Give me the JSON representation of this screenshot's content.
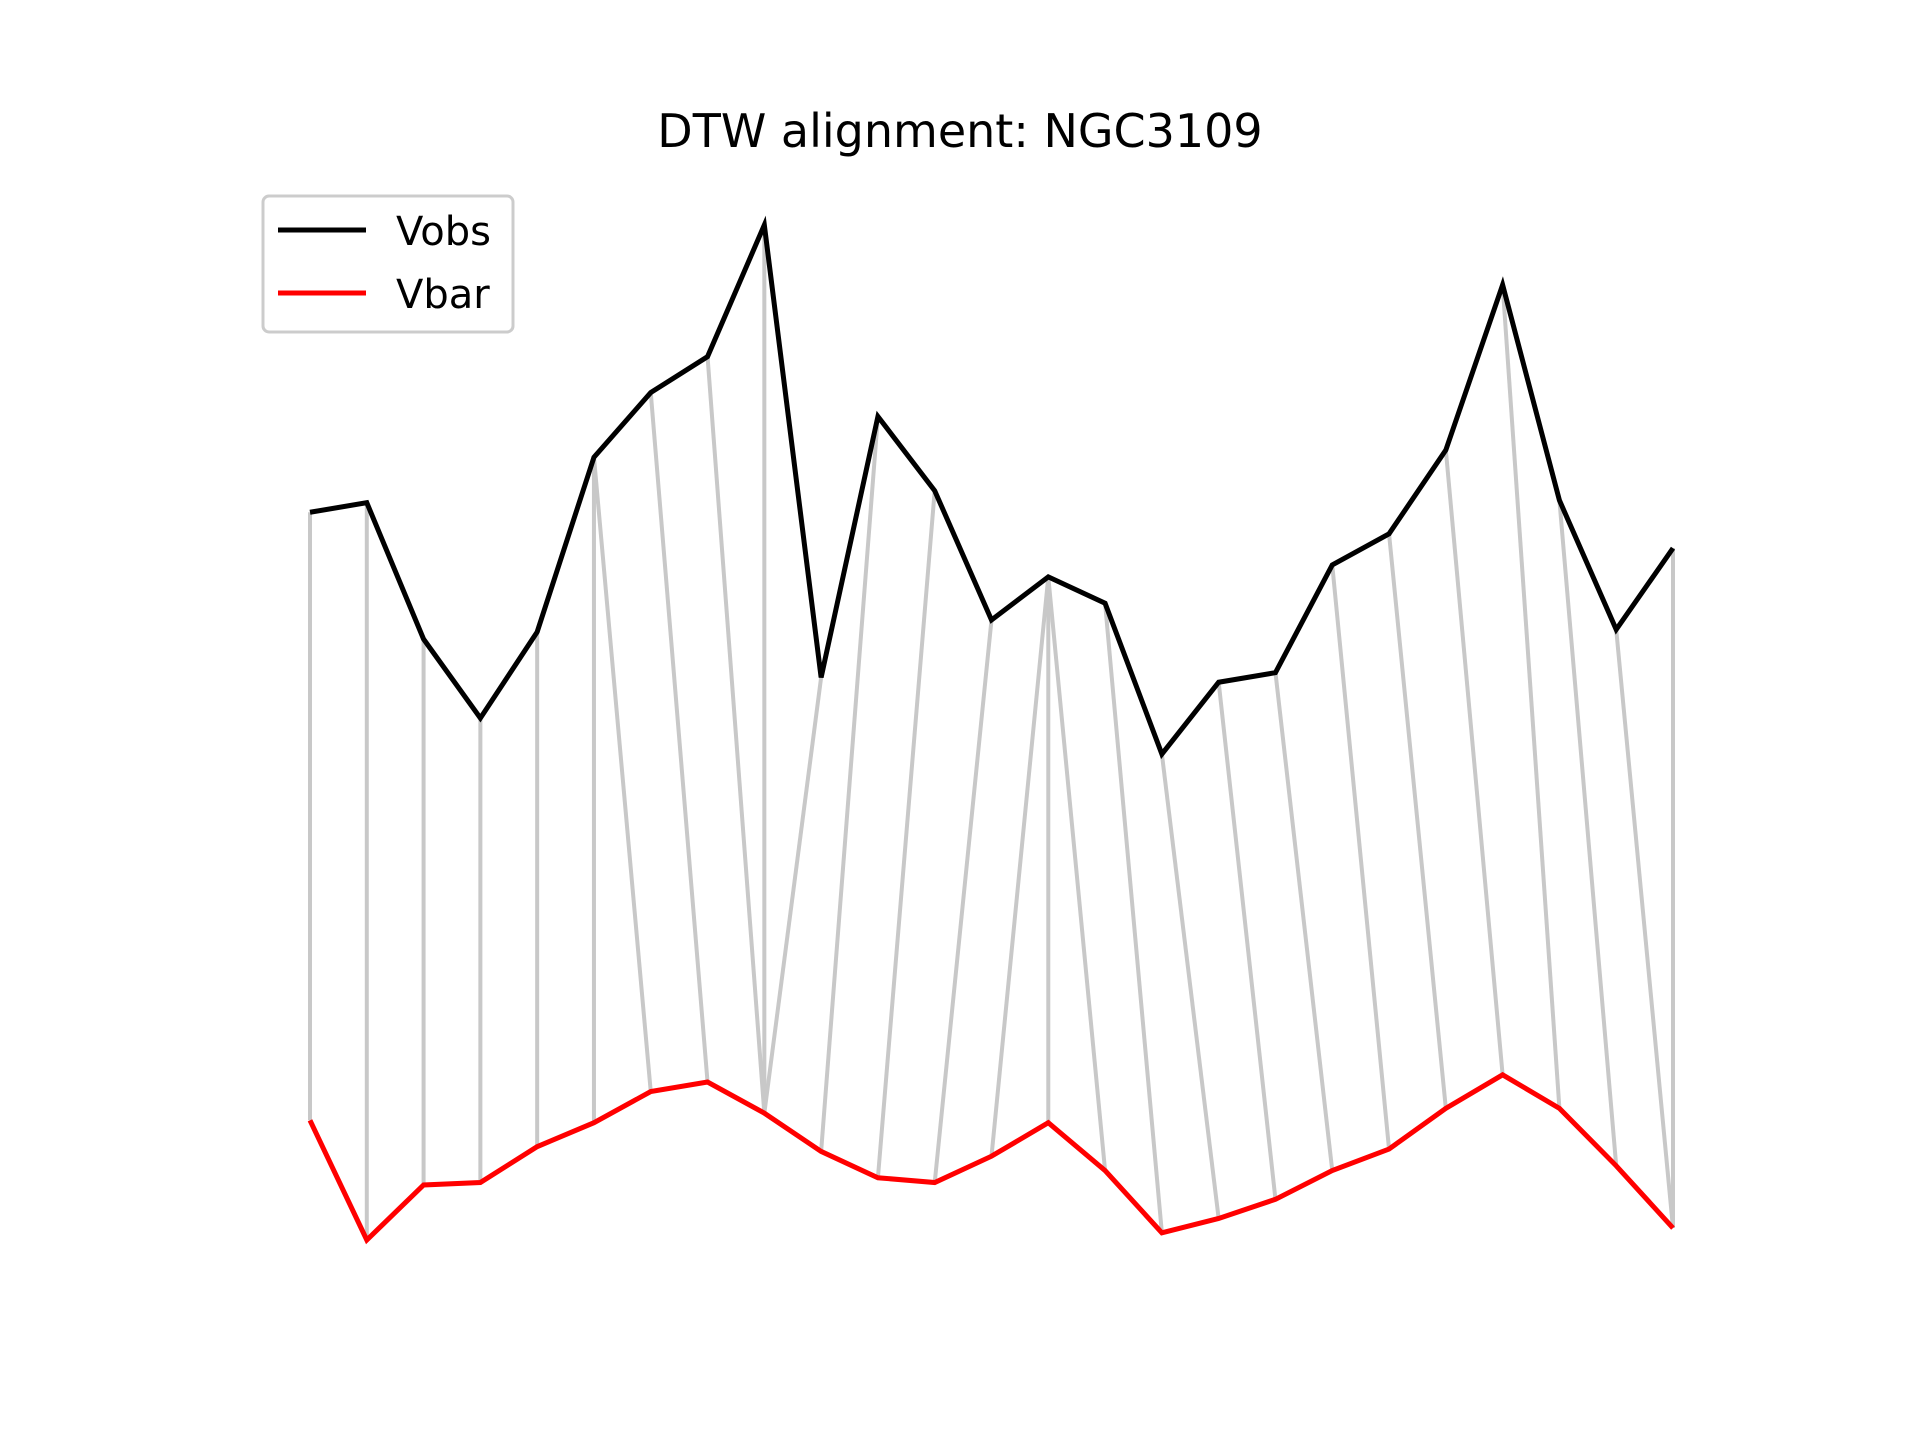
{
  "chart_data": {
    "type": "line",
    "title": "DTW alignment: NGC3109",
    "xlabel": "",
    "ylabel": "",
    "axes_visible": false,
    "grid": false,
    "legend_position": "upper-left",
    "x": [
      0,
      1,
      2,
      3,
      4,
      5,
      6,
      7,
      8,
      9,
      10,
      11,
      12,
      13,
      14,
      15,
      16,
      17,
      18,
      19,
      20,
      21,
      22,
      23,
      24
    ],
    "series": [
      {
        "name": "Vobs",
        "color": "#000000",
        "values": [
          1.8,
          1.84,
          1.27,
          0.94,
          1.3,
          2.03,
          2.3,
          2.45,
          3.0,
          1.11,
          2.2,
          1.89,
          1.35,
          1.53,
          1.42,
          0.79,
          1.09,
          1.13,
          1.58,
          1.71,
          2.06,
          2.75,
          1.85,
          1.31,
          1.65
        ]
      },
      {
        "name": "Vbar",
        "color": "#ff0000",
        "values": [
          -0.74,
          -1.24,
          -1.01,
          -1.0,
          -0.85,
          -0.75,
          -0.62,
          -0.58,
          -0.71,
          -0.87,
          -0.98,
          -1.0,
          -0.89,
          -0.75,
          -0.95,
          -1.21,
          -1.15,
          -1.07,
          -0.95,
          -0.86,
          -0.69,
          -0.55,
          -0.69,
          -0.93,
          -1.19
        ]
      }
    ],
    "alignment_color": "#c8c8c8",
    "alignment_pairs": [
      [
        0,
        0
      ],
      [
        1,
        1
      ],
      [
        2,
        2
      ],
      [
        3,
        3
      ],
      [
        4,
        4
      ],
      [
        5,
        5
      ],
      [
        5,
        6
      ],
      [
        6,
        7
      ],
      [
        7,
        8
      ],
      [
        8,
        8
      ],
      [
        9,
        8
      ],
      [
        10,
        9
      ],
      [
        11,
        10
      ],
      [
        12,
        11
      ],
      [
        13,
        12
      ],
      [
        13,
        13
      ],
      [
        13,
        14
      ],
      [
        14,
        15
      ],
      [
        15,
        16
      ],
      [
        16,
        17
      ],
      [
        17,
        18
      ],
      [
        18,
        19
      ],
      [
        19,
        20
      ],
      [
        20,
        21
      ],
      [
        21,
        22
      ],
      [
        22,
        23
      ],
      [
        23,
        24
      ],
      [
        24,
        24
      ]
    ]
  }
}
